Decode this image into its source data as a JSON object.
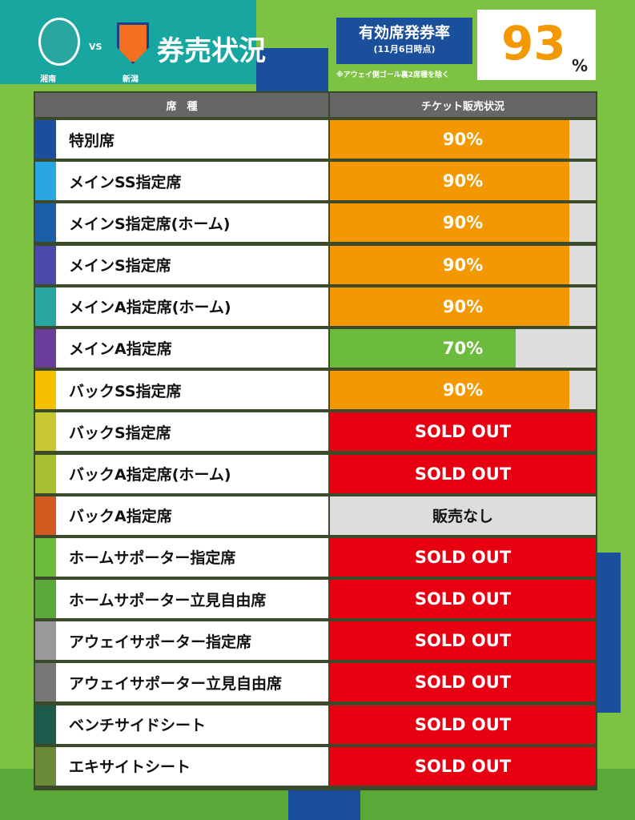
{
  "header": {
    "home_team": "湘南",
    "vs": "VS",
    "away_team": "新潟",
    "title": "券売状況",
    "rate_title": "有効席発券率",
    "rate_date": "(11月6日時点)",
    "rate_note": "※アウェイ側ゴール裏2席種を除く",
    "rate_value": 93,
    "rate_unit": "%"
  },
  "table": {
    "columns": [
      "席　種",
      "チケット販売状況"
    ],
    "rows": [
      {
        "name": "特別席",
        "stripe": "#1a4f9c",
        "value": 90,
        "value_label": "90%",
        "color": "#f39800"
      },
      {
        "name": "メインSS指定席",
        "stripe": "#2aa6e0",
        "value": 90,
        "value_label": "90%",
        "color": "#f39800"
      },
      {
        "name": "メインS指定席(ホーム)",
        "stripe": "#1a5fa8",
        "value": 90,
        "value_label": "90%",
        "color": "#f39800"
      },
      {
        "name": "メインS指定席",
        "stripe": "#4a4aa8",
        "value": 90,
        "value_label": "90%",
        "color": "#f39800"
      },
      {
        "name": "メインA指定席(ホーム)",
        "stripe": "#2aa6a0",
        "value": 90,
        "value_label": "90%",
        "color": "#f39800"
      },
      {
        "name": "メインA指定席",
        "stripe": "#6a3d9a",
        "value": 70,
        "value_label": "70%",
        "color": "#6cbb3c"
      },
      {
        "name": "バックSS指定席",
        "stripe": "#f5c000",
        "value": 90,
        "value_label": "90%",
        "color": "#f39800"
      },
      {
        "name": "バックS指定席",
        "stripe": "#c8c830",
        "status": "SOLD OUT",
        "color": "#e60012"
      },
      {
        "name": "バックA指定席(ホーム)",
        "stripe": "#a8c030",
        "status": "SOLD OUT",
        "color": "#e60012"
      },
      {
        "name": "バックA指定席",
        "stripe": "#d05a20",
        "status": "販売なし",
        "color": "#dddddd"
      },
      {
        "name": "ホームサポーター指定席",
        "stripe": "#6cbb3c",
        "status": "SOLD OUT",
        "color": "#e60012"
      },
      {
        "name": "ホームサポーター立見自由席",
        "stripe": "#5aa838",
        "status": "SOLD OUT",
        "color": "#e60012"
      },
      {
        "name": "アウェイサポーター指定席",
        "stripe": "#999999",
        "status": "SOLD OUT",
        "color": "#e60012"
      },
      {
        "name": "アウェイサポーター立見自由席",
        "stripe": "#777777",
        "status": "SOLD OUT",
        "color": "#e60012"
      },
      {
        "name": "ベンチサイドシート",
        "stripe": "#1e5a4a",
        "status": "SOLD OUT",
        "color": "#e60012"
      },
      {
        "name": "エキサイトシート",
        "stripe": "#6a8a3a",
        "status": "SOLD OUT",
        "color": "#e60012"
      }
    ]
  }
}
